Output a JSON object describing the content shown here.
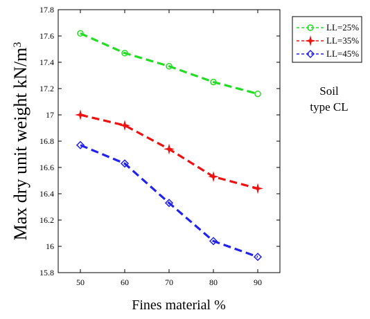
{
  "chart_data": {
    "type": "line",
    "x": [
      50,
      60,
      70,
      80,
      90
    ],
    "xlabel": "Fines material %",
    "ylabel": "Max dry unit weight kN/m",
    "ylabel_superscript": "3",
    "xlim": [
      45,
      95
    ],
    "ylim": [
      15.8,
      17.8
    ],
    "x_ticks": [
      "50",
      "60",
      "70",
      "80",
      "90"
    ],
    "y_ticks": [
      "15.8",
      "16",
      "16.2",
      "16.4",
      "16.6",
      "16.8",
      "17",
      "17.2",
      "17.4",
      "17.6",
      "17.8"
    ],
    "grid": false,
    "legend_position": "top-right outside",
    "series": [
      {
        "name": "LL=25%",
        "color": "#22dd22",
        "marker": "circle",
        "values": [
          17.62,
          17.47,
          17.37,
          17.25,
          17.16
        ]
      },
      {
        "name": "LL=35%",
        "color": "#ee1111",
        "marker": "star",
        "values": [
          17.0,
          16.92,
          16.74,
          16.53,
          16.44
        ]
      },
      {
        "name": "LL=45%",
        "color": "#2222ee",
        "marker": "diamond",
        "values": [
          16.77,
          16.63,
          16.33,
          16.04,
          15.92
        ]
      }
    ],
    "annotation": [
      "Soil",
      "type CL"
    ]
  }
}
